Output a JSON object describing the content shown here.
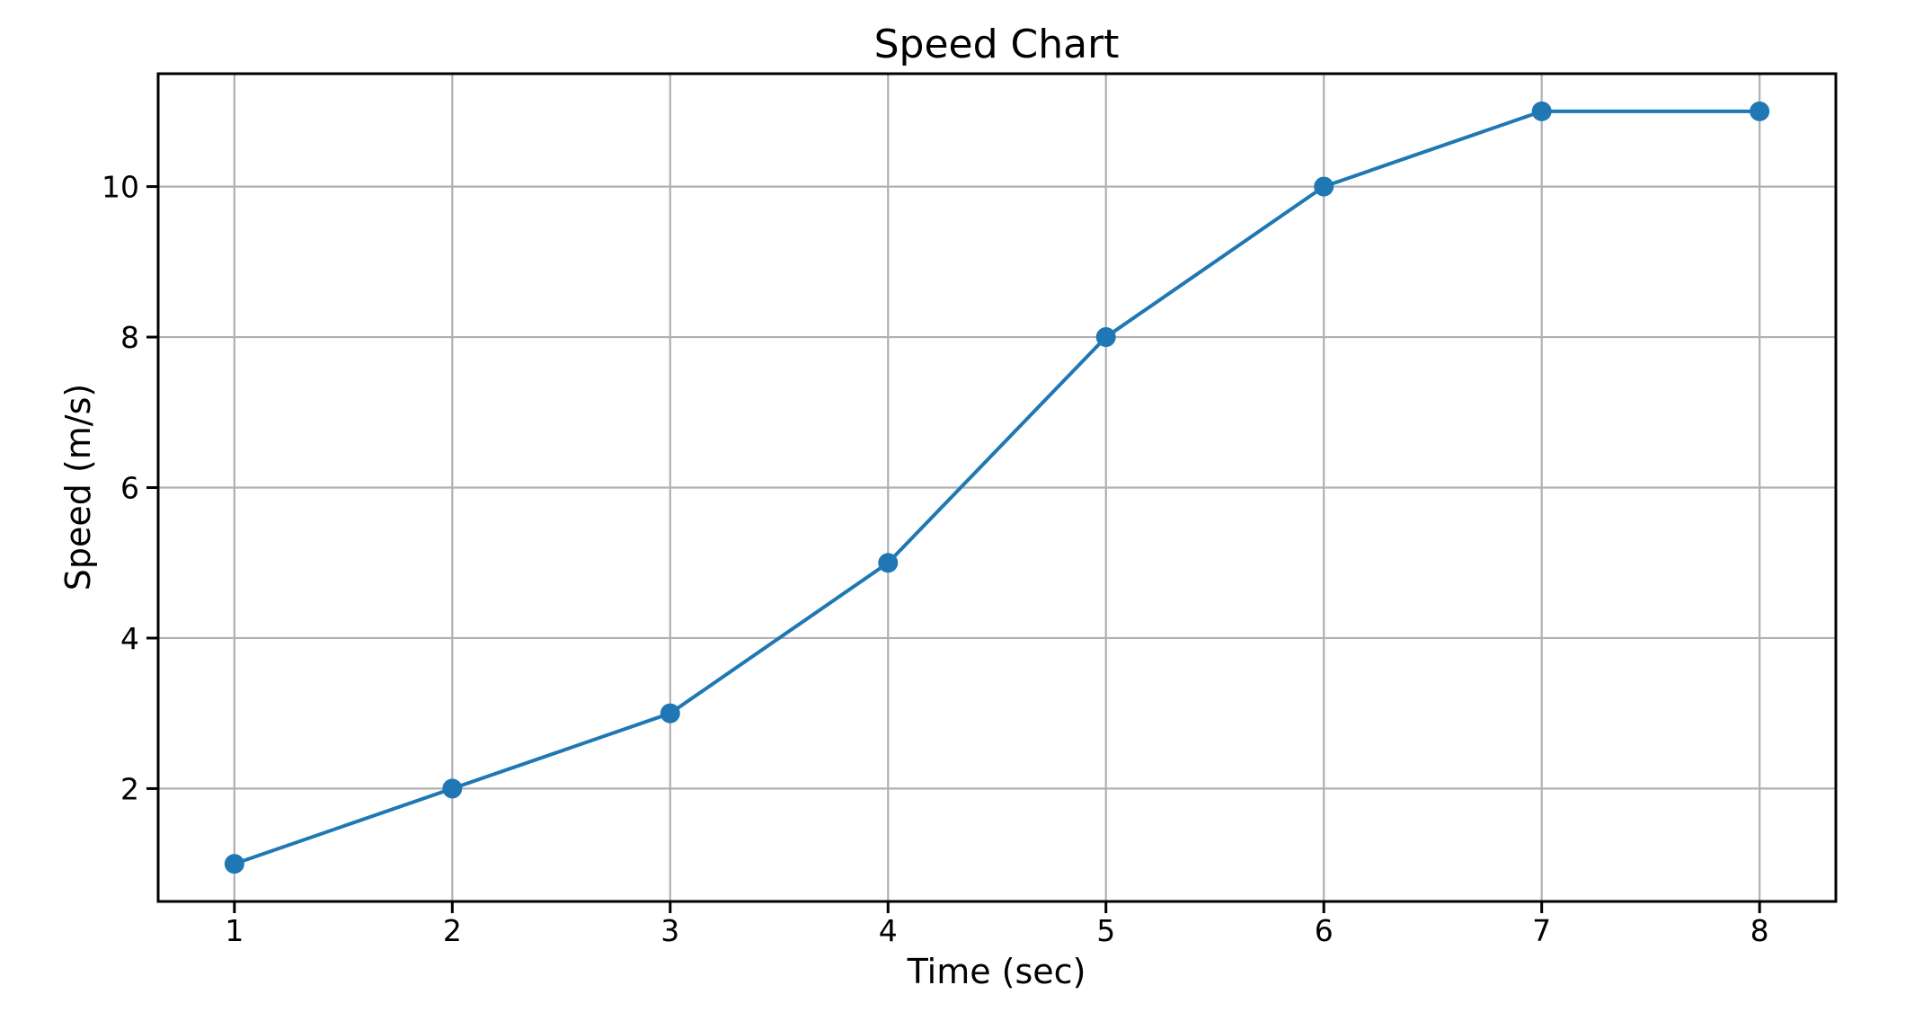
{
  "figure": {
    "background": "#ffffff"
  },
  "chart_data": {
    "type": "line",
    "title": "Speed Chart",
    "xlabel": "Time (sec)",
    "ylabel": "Speed (m/s)",
    "x": [
      1,
      2,
      3,
      4,
      5,
      6,
      7,
      8
    ],
    "y": [
      1,
      2,
      3,
      5,
      8,
      10,
      11,
      11
    ],
    "x_ticks": [
      1,
      2,
      3,
      4,
      5,
      6,
      7,
      8
    ],
    "y_ticks": [
      2,
      4,
      6,
      8,
      10
    ],
    "xlim": [
      0.65,
      8.35
    ],
    "ylim": [
      0.5,
      11.5
    ],
    "grid": true,
    "legend": "none",
    "colors": {
      "line": "#1f77b4",
      "marker": "#1f77b4",
      "grid": "#b0b0b0",
      "spine": "#000000",
      "tick": "#000000",
      "background": "#ffffff"
    }
  }
}
